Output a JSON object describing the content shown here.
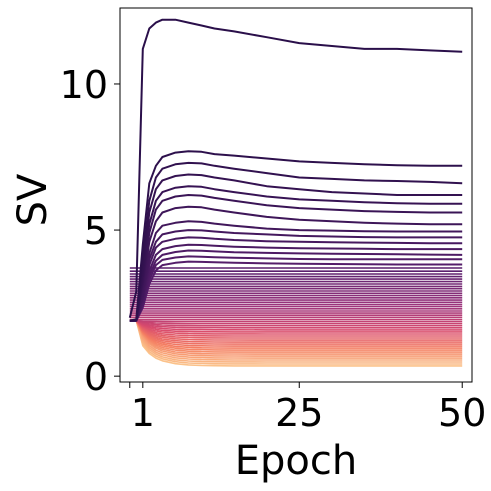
{
  "chart_data": {
    "type": "line",
    "title": "",
    "xlabel": "Epoch",
    "ylabel": "SV",
    "x_ticks": [
      "1",
      "25",
      "50"
    ],
    "x_tick_values": [
      1,
      25,
      50
    ],
    "y_ticks": [
      "0",
      "5",
      "10"
    ],
    "y_tick_values": [
      0,
      5,
      10
    ],
    "xlim": [
      -2.5,
      51.5
    ],
    "ylim": [
      -0.2,
      12.6
    ],
    "epochs": [
      -1,
      0,
      1,
      2,
      3,
      4,
      6,
      8,
      10,
      12,
      15,
      20,
      25,
      30,
      35,
      40,
      45,
      50
    ],
    "grid": false,
    "legend": "none",
    "colormap": "magma (dark purple = largest singular values, peach = smallest)",
    "series_count": 60,
    "series": [
      {
        "values": [
          2.0,
          2.9,
          11.2,
          11.9,
          12.1,
          12.2,
          12.2,
          12.1,
          12.0,
          11.9,
          11.8,
          11.6,
          11.4,
          11.3,
          11.2,
          11.2,
          11.15,
          11.1
        ]
      },
      {
        "values": [
          1.9,
          1.95,
          4.5,
          6.6,
          7.2,
          7.5,
          7.65,
          7.7,
          7.68,
          7.6,
          7.55,
          7.45,
          7.35,
          7.3,
          7.25,
          7.22,
          7.2,
          7.2
        ]
      },
      {
        "values": [
          1.9,
          1.9,
          4.0,
          6.0,
          6.8,
          7.1,
          7.25,
          7.3,
          7.28,
          7.2,
          7.1,
          6.95,
          6.8,
          6.75,
          6.7,
          6.68,
          6.65,
          6.6
        ]
      },
      {
        "values": [
          1.9,
          1.9,
          3.6,
          5.6,
          6.4,
          6.7,
          6.85,
          6.9,
          6.88,
          6.8,
          6.7,
          6.5,
          6.4,
          6.3,
          6.25,
          6.2,
          6.2,
          6.2
        ]
      },
      {
        "values": [
          1.9,
          1.9,
          3.4,
          5.2,
          6.0,
          6.3,
          6.45,
          6.5,
          6.48,
          6.4,
          6.3,
          6.15,
          6.05,
          6.0,
          5.95,
          5.92,
          5.9,
          5.9
        ]
      },
      {
        "values": [
          1.9,
          1.9,
          3.2,
          4.9,
          5.7,
          6.0,
          6.15,
          6.2,
          6.18,
          6.1,
          6.0,
          5.85,
          5.75,
          5.7,
          5.65,
          5.62,
          5.6,
          5.6
        ]
      },
      {
        "values": [
          1.9,
          1.9,
          3.0,
          4.6,
          5.3,
          5.6,
          5.75,
          5.8,
          5.78,
          5.7,
          5.6,
          5.45,
          5.35,
          5.3,
          5.25,
          5.22,
          5.2,
          5.2
        ]
      },
      {
        "values": [
          1.9,
          1.9,
          2.8,
          4.2,
          4.9,
          5.15,
          5.25,
          5.3,
          5.28,
          5.22,
          5.15,
          5.05,
          5.0,
          4.98,
          4.96,
          4.95,
          4.95,
          4.95
        ]
      },
      {
        "values": [
          1.9,
          1.9,
          2.7,
          4.0,
          4.6,
          4.85,
          4.95,
          5.0,
          4.99,
          4.95,
          4.9,
          4.85,
          4.8,
          4.78,
          4.76,
          4.75,
          4.75,
          4.75
        ]
      },
      {
        "values": [
          1.9,
          1.9,
          2.6,
          3.8,
          4.4,
          4.6,
          4.7,
          4.75,
          4.74,
          4.7,
          4.66,
          4.62,
          4.6,
          4.58,
          4.57,
          4.56,
          4.55,
          4.55
        ]
      },
      {
        "values": [
          1.9,
          1.9,
          2.5,
          3.6,
          4.15,
          4.35,
          4.45,
          4.5,
          4.49,
          4.46,
          4.43,
          4.4,
          4.38,
          4.37,
          4.36,
          4.35,
          4.35,
          4.35
        ]
      },
      {
        "values": [
          1.9,
          1.9,
          2.45,
          3.45,
          3.95,
          4.15,
          4.25,
          4.3,
          4.29,
          4.27,
          4.24,
          4.22,
          4.2,
          4.19,
          4.18,
          4.17,
          4.16,
          4.15
        ]
      },
      {
        "values": [
          1.9,
          1.9,
          2.4,
          3.3,
          3.8,
          3.98,
          4.06,
          4.1,
          4.09,
          4.07,
          4.05,
          4.03,
          4.01,
          4.0,
          4.0,
          4.0,
          4.0,
          4.0
        ]
      },
      {
        "values": [
          1.9,
          1.9,
          2.35,
          3.15,
          3.62,
          3.8,
          3.88,
          3.92,
          3.91,
          3.9,
          3.88,
          3.86,
          3.85,
          3.84,
          3.83,
          3.82,
          3.82,
          3.82
        ]
      }
    ],
    "band": {
      "description": "dense bundle of remaining singular-value curves",
      "count": 46,
      "start_value": 1.9,
      "top_plateau": 3.7,
      "bottom_plateau": 0.35
    }
  }
}
